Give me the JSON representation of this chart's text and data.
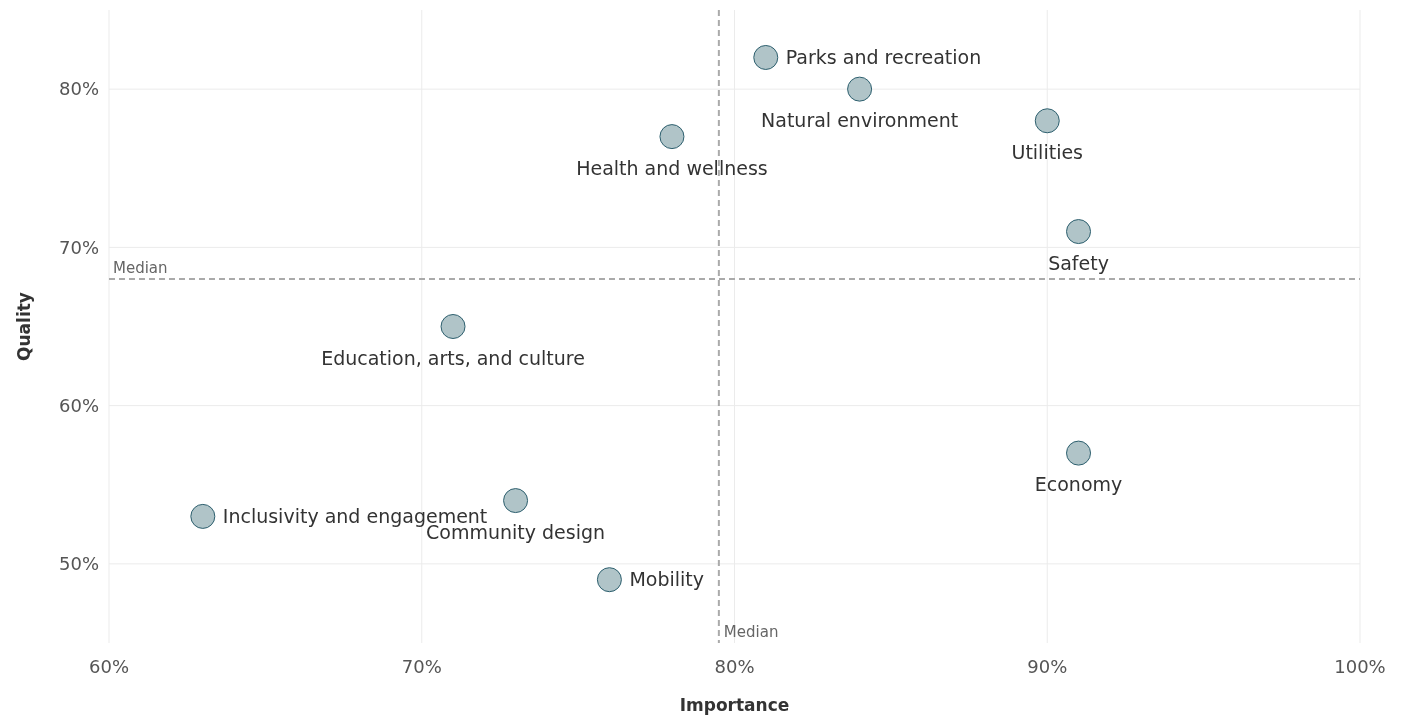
{
  "chart_data": {
    "type": "scatter",
    "xlabel": "Importance",
    "ylabel": "Quality",
    "xlim": [
      60,
      100
    ],
    "ylim": [
      45,
      85
    ],
    "xticks": [
      {
        "value": 60,
        "label": "60%"
      },
      {
        "value": 70,
        "label": "70%"
      },
      {
        "value": 80,
        "label": "80%"
      },
      {
        "value": 90,
        "label": "90%"
      },
      {
        "value": 100,
        "label": "100%"
      }
    ],
    "yticks": [
      {
        "value": 50,
        "label": "50%"
      },
      {
        "value": 60,
        "label": "60%"
      },
      {
        "value": 70,
        "label": "70%"
      },
      {
        "value": 80,
        "label": "80%"
      }
    ],
    "grid": true,
    "marker": "circle",
    "series": [
      {
        "color": "#b0c4c8",
        "x": [
          81,
          84,
          90,
          91,
          78,
          71,
          91,
          63,
          73,
          76
        ],
        "values": [
          82,
          80,
          78,
          71,
          77,
          65,
          57,
          53,
          54,
          49
        ]
      }
    ],
    "ref_lines": [
      {
        "axis": "x",
        "value": 79.5,
        "label": "Median",
        "color": "#aaaaaa",
        "line_style": "dashed"
      },
      {
        "axis": "y",
        "value": 68,
        "label": "Median",
        "color": "#aaaaaa",
        "line_style": "dashed"
      }
    ],
    "annotations": [
      {
        "text": "Parks and recreation",
        "x": 81,
        "y": 82
      },
      {
        "text": "Natural environment",
        "x": 84,
        "y": 80
      },
      {
        "text": "Utilities",
        "x": 90,
        "y": 78
      },
      {
        "text": "Safety",
        "x": 91,
        "y": 71
      },
      {
        "text": "Health and wellness",
        "x": 78,
        "y": 77
      },
      {
        "text": "Education, arts, and culture",
        "x": 71,
        "y": 65
      },
      {
        "text": "Economy",
        "x": 91,
        "y": 57
      },
      {
        "text": "Inclusivity and engagement",
        "x": 63,
        "y": 53
      },
      {
        "text": "Community design",
        "x": 73,
        "y": 54
      },
      {
        "text": "Mobility",
        "x": 76,
        "y": 49
      }
    ]
  }
}
